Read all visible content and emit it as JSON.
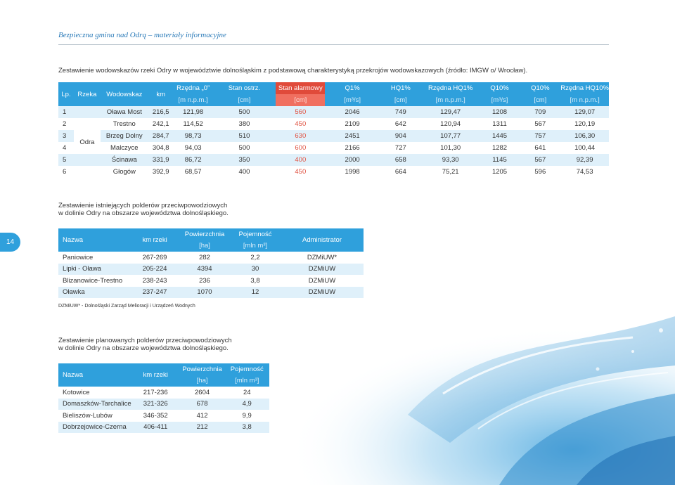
{
  "header": {
    "title": "Bezpieczna gmina nad Odrą – materiały informacyjne"
  },
  "page_number": "14",
  "gauges": {
    "caption": "Zestawienie wodowskazów rzeki Odry w województwie dolnośląskim z podstawową charakterystyką przekrojów wodowskazowych (źródło: IMGW o/ Wrocław).",
    "headers": [
      "Lp.",
      "Rzeka",
      "Wodowskaz",
      "km",
      "Rzędna „0”",
      "Stan ostrz.",
      "Stan alarmowy",
      "Q1%",
      "HQ1%",
      "Rzędna HQ1%",
      "Q10%",
      "Q10%",
      "Rzędna HQ10%"
    ],
    "units": [
      "[m n.p.m.]",
      "[cm]",
      "[cm]",
      "[m³/s]",
      "[cm]",
      "[m n.p.m.]",
      "[m³/s]",
      "[cm]",
      "[m n.p.m.]"
    ],
    "river": "Odra",
    "rows": [
      {
        "lp": "1",
        "name": "Oława Most",
        "km": "216,5",
        "zero": "121,98",
        "warn": "500",
        "alarm": "560",
        "q1": "2046",
        "hq1": "749",
        "rhq1": "129,47",
        "q10": "1208",
        "q10b": "709",
        "rhq10": "129,07"
      },
      {
        "lp": "2",
        "name": "Trestno",
        "km": "242,1",
        "zero": "114,52",
        "warn": "380",
        "alarm": "450",
        "q1": "2109",
        "hq1": "642",
        "rhq1": "120,94",
        "q10": "1311",
        "q10b": "567",
        "rhq10": "120,19"
      },
      {
        "lp": "3",
        "name": "Brzeg Dolny",
        "km": "284,7",
        "zero": "98,73",
        "warn": "510",
        "alarm": "630",
        "q1": "2451",
        "hq1": "904",
        "rhq1": "107,77",
        "q10": "1445",
        "q10b": "757",
        "rhq10": "106,30"
      },
      {
        "lp": "4",
        "name": "Malczyce",
        "km": "304,8",
        "zero": "94,03",
        "warn": "500",
        "alarm": "600",
        "q1": "2166",
        "hq1": "727",
        "rhq1": "101,30",
        "q10": "1282",
        "q10b": "641",
        "rhq10": "100,44"
      },
      {
        "lp": "5",
        "name": "Ścinawa",
        "km": "331,9",
        "zero": "86,72",
        "warn": "350",
        "alarm": "400",
        "q1": "2000",
        "hq1": "658",
        "rhq1": "93,30",
        "q10": "1145",
        "q10b": "567",
        "rhq10": "92,39"
      },
      {
        "lp": "6",
        "name": "Głogów",
        "km": "392,9",
        "zero": "68,57",
        "warn": "400",
        "alarm": "450",
        "q1": "1998",
        "hq1": "664",
        "rhq1": "75,21",
        "q10": "1205",
        "q10b": "596",
        "rhq10": "74,53"
      }
    ]
  },
  "existing": {
    "caption1": "Zestawienie istniejących polderów przeciwpowodziowych",
    "caption2": "w dolinie Odry na obszarze województwa dolnośląskiego.",
    "headers": [
      "Nazwa",
      "km rzeki",
      "Powierzchnia",
      "Pojemność",
      "Administrator"
    ],
    "units": [
      "[ha]",
      "[mln m³]"
    ],
    "rows": [
      {
        "name": "Paniowice",
        "km": "267-269",
        "area": "282",
        "vol": "2,2",
        "admin": "DZMiUW*"
      },
      {
        "name": "Lipki - Oława",
        "km": "205-224",
        "area": "4394",
        "vol": "30",
        "admin": "DZMiUW"
      },
      {
        "name": "Blizanowice-Trestno",
        "km": "238-243",
        "area": "236",
        "vol": "3,8",
        "admin": "DZMiUW"
      },
      {
        "name": "Oławka",
        "km": "237-247",
        "area": "1070",
        "vol": "12",
        "admin": "DZMiUW"
      }
    ],
    "note": "DZMiUW* - Dolnośląski Zarząd Melioracji i Urządzeń Wodnych"
  },
  "planned": {
    "caption1": "Zestawienie planowanych polderów przeciwpowodziowych",
    "caption2": "w dolinie Odry na obszarze województwa dolnośląskiego.",
    "headers": [
      "Nazwa",
      "km rzeki",
      "Powierzchnia",
      "Pojemność"
    ],
    "units": [
      "[ha]",
      "[mln m³]"
    ],
    "rows": [
      {
        "name": "Kotowice",
        "km": "217-236",
        "area": "2604",
        "vol": "24"
      },
      {
        "name": "Domaszków-Tarchalice",
        "km": "321-326",
        "area": "678",
        "vol": "4,9"
      },
      {
        "name": "Bieliszów-Lubów",
        "km": "346-352",
        "area": "412",
        "vol": "9,9"
      },
      {
        "name": "Dobrzejowice-Czerna",
        "km": "406-411",
        "area": "212",
        "vol": "3,8"
      }
    ]
  },
  "colors": {
    "header_blue": "#2fa0dc",
    "alarm_red": "#e04a3a",
    "row_tint": "#dff0fa"
  }
}
